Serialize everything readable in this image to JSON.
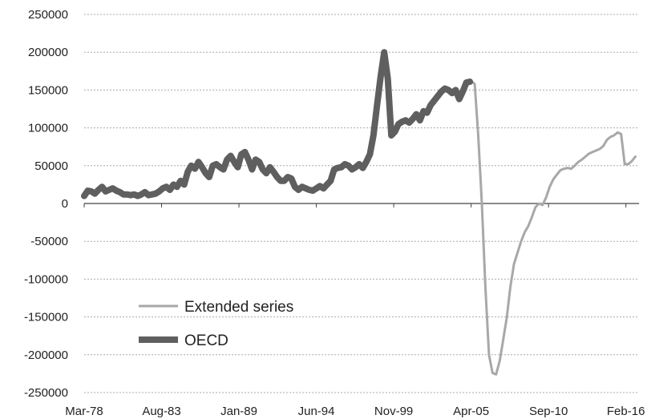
{
  "chart_data": {
    "type": "line",
    "title": "",
    "xlabel": "",
    "ylabel": "",
    "ylim": [
      -250000,
      250000
    ],
    "yticks": [
      250000,
      200000,
      150000,
      100000,
      50000,
      0,
      -50000,
      -100000,
      -150000,
      -200000,
      -250000
    ],
    "ytick_labels": [
      "250000",
      "200000",
      "150000",
      "100000",
      "50000",
      "0",
      "-50000",
      "-100000",
      "-150000",
      "-200000",
      "-250000"
    ],
    "xlim": [
      "1978-03",
      "2017-01"
    ],
    "xtick_labels": [
      {
        "label": "Mar-78",
        "date": "1978-03"
      },
      {
        "label": "Aug-83",
        "date": "1983-08"
      },
      {
        "label": "Jan-89",
        "date": "1989-01"
      },
      {
        "label": "Jun-94",
        "date": "1994-06"
      },
      {
        "label": "Nov-99",
        "date": "1999-11"
      },
      {
        "label": "Apr-05",
        "date": "2005-04"
      },
      {
        "label": "Sep-10",
        "date": "2010-09"
      },
      {
        "label": "Feb-16",
        "date": "2016-02"
      }
    ],
    "grid": true,
    "legend_position": "bottom-left",
    "series": [
      {
        "name": "Extended series",
        "color": "#a8a8a8",
        "points": [
          [
            "2005-04",
            162000
          ],
          [
            "2005-07",
            158000
          ],
          [
            "2005-10",
            90000
          ],
          [
            "2006-01",
            0
          ],
          [
            "2006-04",
            -110000
          ],
          [
            "2006-07",
            -200000
          ],
          [
            "2006-10",
            -224000
          ],
          [
            "2007-01",
            -226000
          ],
          [
            "2007-04",
            -208000
          ],
          [
            "2007-07",
            -180000
          ],
          [
            "2007-10",
            -150000
          ],
          [
            "2008-01",
            -110000
          ],
          [
            "2008-04",
            -80000
          ],
          [
            "2008-07",
            -65000
          ],
          [
            "2008-10",
            -50000
          ],
          [
            "2009-01",
            -38000
          ],
          [
            "2009-04",
            -30000
          ],
          [
            "2009-07",
            -18000
          ],
          [
            "2009-10",
            -5000
          ],
          [
            "2010-01",
            0
          ],
          [
            "2010-04",
            -2000
          ],
          [
            "2010-07",
            8000
          ],
          [
            "2010-10",
            22000
          ],
          [
            "2011-01",
            32000
          ],
          [
            "2011-04",
            38000
          ],
          [
            "2011-07",
            44000
          ],
          [
            "2011-10",
            46000
          ],
          [
            "2012-01",
            47000
          ],
          [
            "2012-04",
            46000
          ],
          [
            "2012-07",
            50000
          ],
          [
            "2012-10",
            55000
          ],
          [
            "2013-01",
            58000
          ],
          [
            "2013-04",
            62000
          ],
          [
            "2013-07",
            66000
          ],
          [
            "2013-10",
            68000
          ],
          [
            "2014-01",
            70000
          ],
          [
            "2014-04",
            72000
          ],
          [
            "2014-07",
            76000
          ],
          [
            "2014-10",
            84000
          ],
          [
            "2015-01",
            88000
          ],
          [
            "2015-04",
            90000
          ],
          [
            "2015-07",
            94000
          ],
          [
            "2015-10",
            92000
          ],
          [
            "2016-01",
            52000
          ],
          [
            "2016-04",
            52000
          ],
          [
            "2016-07",
            56000
          ],
          [
            "2016-10",
            62000
          ]
        ]
      },
      {
        "name": "OECD",
        "color": "#5f5f5f",
        "points": [
          [
            "1978-03",
            10000
          ],
          [
            "1978-06",
            17000
          ],
          [
            "1978-09",
            16000
          ],
          [
            "1978-12",
            13000
          ],
          [
            "1979-03",
            18000
          ],
          [
            "1979-06",
            22000
          ],
          [
            "1979-09",
            16000
          ],
          [
            "1979-12",
            18000
          ],
          [
            "1980-03",
            20000
          ],
          [
            "1980-06",
            17000
          ],
          [
            "1980-09",
            15000
          ],
          [
            "1980-12",
            12000
          ],
          [
            "1981-03",
            12000
          ],
          [
            "1981-06",
            11000
          ],
          [
            "1981-09",
            12000
          ],
          [
            "1981-12",
            10000
          ],
          [
            "1982-03",
            12000
          ],
          [
            "1982-06",
            15000
          ],
          [
            "1982-09",
            11000
          ],
          [
            "1982-12",
            12000
          ],
          [
            "1983-03",
            13000
          ],
          [
            "1983-06",
            16000
          ],
          [
            "1983-09",
            20000
          ],
          [
            "1983-12",
            22000
          ],
          [
            "1984-03",
            18000
          ],
          [
            "1984-06",
            25000
          ],
          [
            "1984-09",
            22000
          ],
          [
            "1984-12",
            30000
          ],
          [
            "1985-03",
            25000
          ],
          [
            "1985-06",
            42000
          ],
          [
            "1985-09",
            50000
          ],
          [
            "1985-12",
            46000
          ],
          [
            "1986-03",
            55000
          ],
          [
            "1986-06",
            48000
          ],
          [
            "1986-09",
            40000
          ],
          [
            "1986-12",
            35000
          ],
          [
            "1987-03",
            50000
          ],
          [
            "1987-06",
            52000
          ],
          [
            "1987-09",
            48000
          ],
          [
            "1987-12",
            45000
          ],
          [
            "1988-03",
            58000
          ],
          [
            "1988-06",
            63000
          ],
          [
            "1988-09",
            55000
          ],
          [
            "1988-12",
            48000
          ],
          [
            "1989-03",
            65000
          ],
          [
            "1989-06",
            68000
          ],
          [
            "1989-09",
            58000
          ],
          [
            "1989-12",
            45000
          ],
          [
            "1990-03",
            58000
          ],
          [
            "1990-06",
            55000
          ],
          [
            "1990-09",
            45000
          ],
          [
            "1990-12",
            40000
          ],
          [
            "1991-03",
            48000
          ],
          [
            "1991-06",
            42000
          ],
          [
            "1991-09",
            35000
          ],
          [
            "1991-12",
            30000
          ],
          [
            "1992-03",
            30000
          ],
          [
            "1992-06",
            35000
          ],
          [
            "1992-09",
            33000
          ],
          [
            "1992-12",
            22000
          ],
          [
            "1993-03",
            18000
          ],
          [
            "1993-06",
            22000
          ],
          [
            "1993-09",
            20000
          ],
          [
            "1993-12",
            18000
          ],
          [
            "1994-03",
            17000
          ],
          [
            "1994-06",
            20000
          ],
          [
            "1994-09",
            23000
          ],
          [
            "1994-12",
            20000
          ],
          [
            "1995-03",
            25000
          ],
          [
            "1995-06",
            30000
          ],
          [
            "1995-09",
            45000
          ],
          [
            "1995-12",
            47000
          ],
          [
            "1996-03",
            48000
          ],
          [
            "1996-06",
            52000
          ],
          [
            "1996-09",
            50000
          ],
          [
            "1996-12",
            45000
          ],
          [
            "1997-03",
            48000
          ],
          [
            "1997-06",
            52000
          ],
          [
            "1997-09",
            47000
          ],
          [
            "1997-12",
            55000
          ],
          [
            "1998-03",
            65000
          ],
          [
            "1998-06",
            90000
          ],
          [
            "1998-09",
            130000
          ],
          [
            "1998-12",
            168000
          ],
          [
            "1999-03",
            200000
          ],
          [
            "1999-06",
            165000
          ],
          [
            "1999-09",
            90000
          ],
          [
            "1999-12",
            95000
          ],
          [
            "2000-03",
            105000
          ],
          [
            "2000-06",
            108000
          ],
          [
            "2000-09",
            110000
          ],
          [
            "2000-12",
            107000
          ],
          [
            "2001-03",
            112000
          ],
          [
            "2001-06",
            118000
          ],
          [
            "2001-09",
            110000
          ],
          [
            "2001-12",
            122000
          ],
          [
            "2002-03",
            120000
          ],
          [
            "2002-06",
            130000
          ],
          [
            "2002-09",
            136000
          ],
          [
            "2002-12",
            142000
          ],
          [
            "2003-03",
            148000
          ],
          [
            "2003-06",
            152000
          ],
          [
            "2003-09",
            150000
          ],
          [
            "2003-12",
            146000
          ],
          [
            "2004-03",
            150000
          ],
          [
            "2004-06",
            138000
          ],
          [
            "2004-09",
            148000
          ],
          [
            "2004-12",
            160000
          ],
          [
            "2005-03",
            161000
          ]
        ]
      }
    ]
  }
}
